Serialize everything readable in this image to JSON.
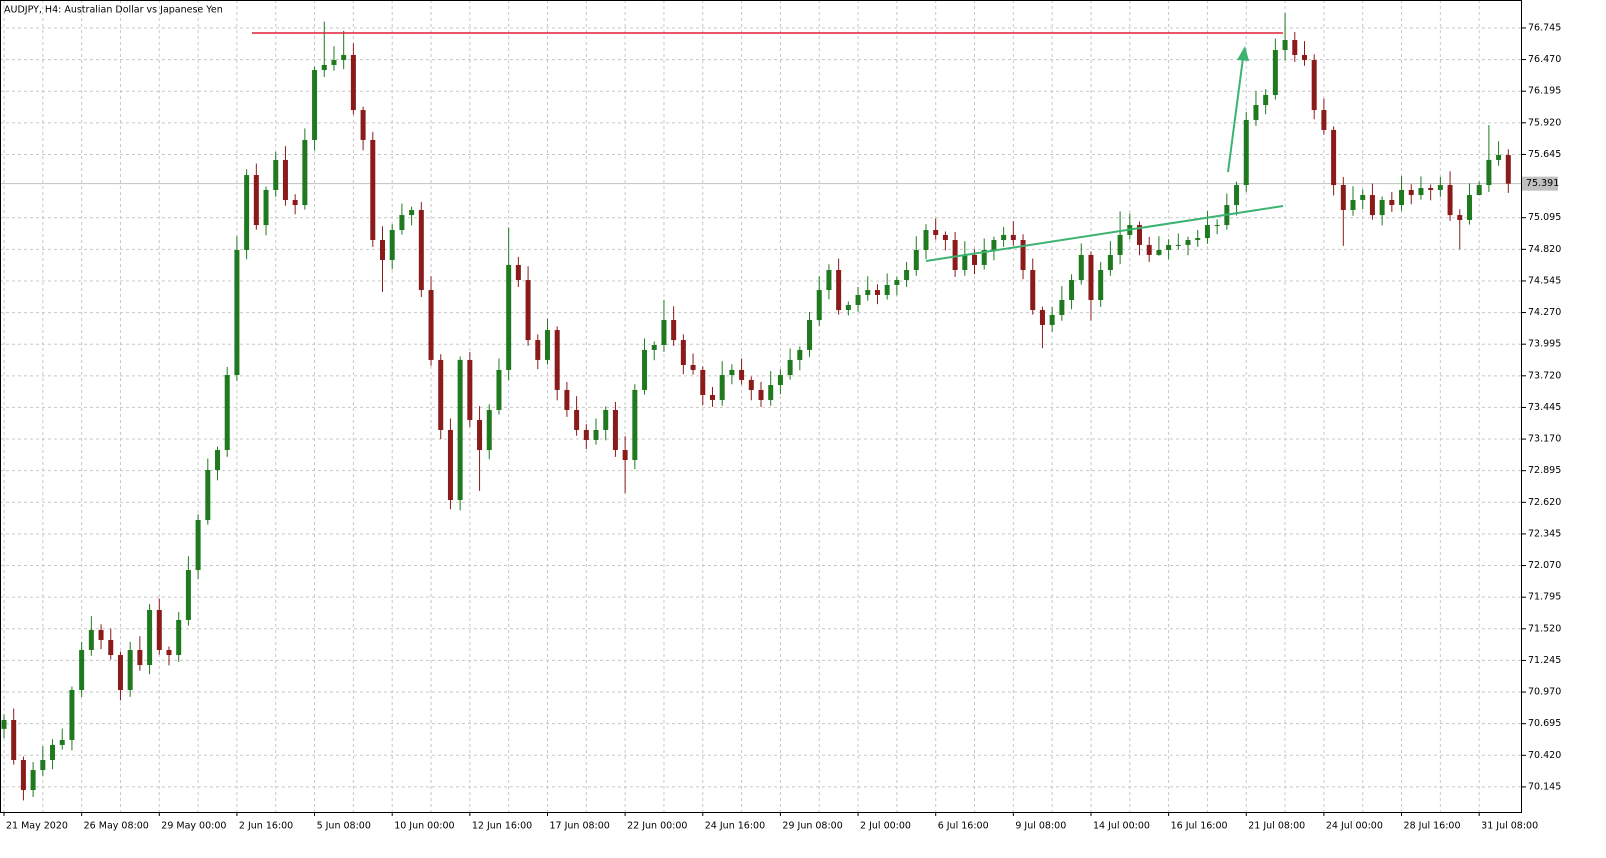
{
  "chart_data": {
    "type": "candlestick",
    "title": "AUDJPY, H4:  Australian Dollar vs Japanese Yen",
    "ylim": [
      69.927,
      76.988
    ],
    "yticks": [
      70.145,
      {
        "value": 70.42,
        "label": "70.420"
      },
      70.695,
      {
        "value": 70.97,
        "label": "70.970"
      },
      71.245,
      {
        "value": 71.52,
        "label": "71.520"
      },
      71.795,
      {
        "value": 72.07,
        "label": "72.070"
      },
      72.345,
      {
        "value": 72.62,
        "label": "72.620"
      },
      72.895,
      {
        "value": 73.17,
        "label": "73.170"
      },
      73.445,
      {
        "value": 73.72,
        "label": "73.720"
      },
      73.995,
      {
        "value": 74.27,
        "label": "74.270"
      },
      74.545,
      {
        "value": 74.82,
        "label": "74.820"
      },
      75.095,
      75.645,
      {
        "value": 75.92,
        "label": "75.920"
      },
      76.195,
      {
        "value": 76.47,
        "label": "76.470"
      },
      76.745
    ],
    "grid": true,
    "last_price": 75.391,
    "colors": {
      "up": "#1f7a1f",
      "down": "#8b1a1a",
      "grid": "#c8c8c8",
      "last_price": "#c0c0c0"
    },
    "categories": [
      "21 May 2020",
      null,
      null,
      null,
      null,
      null,
      null,
      null,
      "26 May 08:00",
      null,
      null,
      null,
      null,
      null,
      null,
      null,
      "29 May 00:00",
      null,
      null,
      null,
      null,
      null,
      null,
      null,
      "2 Jun 16:00",
      null,
      null,
      null,
      null,
      null,
      null,
      null,
      "5 Jun 08:00",
      null,
      null,
      null,
      null,
      null,
      null,
      null,
      "10 Jun 00:00",
      null,
      null,
      null,
      null,
      null,
      null,
      null,
      "12 Jun 16:00",
      null,
      null,
      null,
      null,
      null,
      null,
      null,
      "17 Jun 08:00",
      null,
      null,
      null,
      null,
      null,
      null,
      null,
      "22 Jun 00:00",
      null,
      null,
      null,
      null,
      null,
      null,
      null,
      "24 Jun 16:00",
      null,
      null,
      null,
      null,
      null,
      null,
      null,
      "29 Jun 08:00",
      null,
      null,
      null,
      null,
      null,
      null,
      null,
      "2 Jul 00:00",
      null,
      null,
      null,
      null,
      null,
      null,
      null,
      "6 Jul 16:00",
      null,
      null,
      null,
      null,
      null,
      null,
      null,
      "9 Jul 08:00",
      null,
      null,
      null,
      null,
      null,
      null,
      null,
      "14 Jul 00:00",
      null,
      null,
      null,
      null,
      null,
      null,
      null,
      "16 Jul 16:00",
      null,
      null,
      null,
      null,
      null,
      null,
      null,
      "21 Jul 08:00",
      null,
      null,
      null,
      null,
      null,
      null,
      null,
      "24 Jul 00:00",
      null,
      null,
      null,
      null,
      null,
      null,
      null,
      "28 Jul 16:00",
      null,
      null,
      null,
      null,
      null,
      null,
      null,
      "31 Jul 08:00",
      null,
      null,
      null
    ],
    "ohlc": [
      [
        70.65,
        70.777,
        70.57,
        70.727
      ],
      [
        70.727,
        70.827,
        70.339,
        70.379
      ],
      [
        70.379,
        70.409,
        70.028,
        70.118
      ],
      [
        70.118,
        70.362,
        70.058,
        70.292
      ],
      [
        70.292,
        70.499,
        70.242,
        70.379
      ],
      [
        70.379,
        70.56,
        70.299,
        70.51
      ],
      [
        70.51,
        70.653,
        70.47,
        70.553
      ],
      [
        70.553,
        71.018,
        70.463,
        70.988
      ],
      [
        70.988,
        71.406,
        70.928,
        71.336
      ],
      [
        71.336,
        71.63,
        71.286,
        71.51
      ],
      [
        71.51,
        71.56,
        71.343,
        71.423
      ],
      [
        71.423,
        71.523,
        71.252,
        71.292
      ],
      [
        71.292,
        71.322,
        70.898,
        70.988
      ],
      [
        70.988,
        71.406,
        70.928,
        71.336
      ],
      [
        71.336,
        71.456,
        71.155,
        71.205
      ],
      [
        71.205,
        71.734,
        71.125,
        71.684
      ],
      [
        71.684,
        71.784,
        71.296,
        71.336
      ],
      [
        71.336,
        71.366,
        71.202,
        71.292
      ],
      [
        71.292,
        71.667,
        71.232,
        71.597
      ],
      [
        71.597,
        72.151,
        71.547,
        72.031
      ],
      [
        72.031,
        72.516,
        71.951,
        72.466
      ],
      [
        72.466,
        73.001,
        72.426,
        72.901
      ],
      [
        72.901,
        73.105,
        72.811,
        73.075
      ],
      [
        73.075,
        73.797,
        73.015,
        73.727
      ],
      [
        73.727,
        74.934,
        73.677,
        74.814
      ],
      [
        74.814,
        75.516,
        74.734,
        75.466
      ],
      [
        75.466,
        75.566,
        74.991,
        75.031
      ],
      [
        75.031,
        75.366,
        74.941,
        75.336
      ],
      [
        75.336,
        75.667,
        75.276,
        75.597
      ],
      [
        75.597,
        75.717,
        75.199,
        75.249
      ],
      [
        75.249,
        75.299,
        75.125,
        75.205
      ],
      [
        75.205,
        75.871,
        75.165,
        75.771
      ],
      [
        75.771,
        76.409,
        75.681,
        76.379
      ],
      [
        76.379,
        76.8,
        76.319,
        76.423
      ],
      [
        76.423,
        76.586,
        76.373,
        76.466
      ],
      [
        76.466,
        76.72,
        76.386,
        76.51
      ],
      [
        76.51,
        76.61,
        75.991,
        76.031
      ],
      [
        76.031,
        76.061,
        75.681,
        75.771
      ],
      [
        75.771,
        75.841,
        74.841,
        74.901
      ],
      [
        74.901,
        75.021,
        74.45,
        74.727
      ],
      [
        74.727,
        75.038,
        74.647,
        74.988
      ],
      [
        74.988,
        75.218,
        74.948,
        75.118
      ],
      [
        75.118,
        75.192,
        75.028,
        75.162
      ],
      [
        75.162,
        75.232,
        74.406,
        74.466
      ],
      [
        74.466,
        74.586,
        73.808,
        73.858
      ],
      [
        73.858,
        73.908,
        73.169,
        73.249
      ],
      [
        73.249,
        73.349,
        72.56,
        72.64
      ],
      [
        72.64,
        73.888,
        72.55,
        73.858
      ],
      [
        73.858,
        73.928,
        73.276,
        73.336
      ],
      [
        73.336,
        73.456,
        72.72,
        73.075
      ],
      [
        73.075,
        73.473,
        72.995,
        73.423
      ],
      [
        73.423,
        73.871,
        73.383,
        73.771
      ],
      [
        73.771,
        75.01,
        73.681,
        74.684
      ],
      [
        74.684,
        74.754,
        74.493,
        74.553
      ],
      [
        74.553,
        74.673,
        73.981,
        74.031
      ],
      [
        74.031,
        74.081,
        73.778,
        73.858
      ],
      [
        73.858,
        74.218,
        73.818,
        74.118
      ],
      [
        74.118,
        74.148,
        73.507,
        73.597
      ],
      [
        73.597,
        73.667,
        73.363,
        73.423
      ],
      [
        73.423,
        73.543,
        73.199,
        73.249
      ],
      [
        73.249,
        73.299,
        73.082,
        73.162
      ],
      [
        73.162,
        73.349,
        73.122,
        73.249
      ],
      [
        73.249,
        73.453,
        73.159,
        73.423
      ],
      [
        73.423,
        73.493,
        73.015,
        73.075
      ],
      [
        73.075,
        73.195,
        72.7,
        72.988
      ],
      [
        72.988,
        73.647,
        72.908,
        73.597
      ],
      [
        73.597,
        74.045,
        73.557,
        73.945
      ],
      [
        73.945,
        74.018,
        73.855,
        73.988
      ],
      [
        73.988,
        74.38,
        73.928,
        74.205
      ],
      [
        74.205,
        74.325,
        73.981,
        74.031
      ],
      [
        74.031,
        74.081,
        73.734,
        73.814
      ],
      [
        73.814,
        73.914,
        73.731,
        73.771
      ],
      [
        73.771,
        73.801,
        73.463,
        73.553
      ],
      [
        73.553,
        73.623,
        73.45,
        73.51
      ],
      [
        73.51,
        73.847,
        73.46,
        73.727
      ],
      [
        73.727,
        73.821,
        73.647,
        73.771
      ],
      [
        73.771,
        73.871,
        73.644,
        73.684
      ],
      [
        73.684,
        73.714,
        73.507,
        73.597
      ],
      [
        73.597,
        73.667,
        73.45,
        73.51
      ],
      [
        73.51,
        73.76,
        73.46,
        73.64
      ],
      [
        73.64,
        73.777,
        73.56,
        73.727
      ],
      [
        73.727,
        73.958,
        73.687,
        73.858
      ],
      [
        73.858,
        73.975,
        73.768,
        73.945
      ],
      [
        73.945,
        74.275,
        73.885,
        74.205
      ],
      [
        74.205,
        74.586,
        74.155,
        74.466
      ],
      [
        74.466,
        74.69,
        74.386,
        74.64
      ],
      [
        74.64,
        74.74,
        74.252,
        74.292
      ],
      [
        74.292,
        74.366,
        74.246,
        74.336
      ],
      [
        74.336,
        74.493,
        74.276,
        74.423
      ],
      [
        74.423,
        74.586,
        74.373,
        74.466
      ],
      [
        74.466,
        74.516,
        74.343,
        74.423
      ],
      [
        74.423,
        74.61,
        74.383,
        74.51
      ],
      [
        74.51,
        74.583,
        74.42,
        74.553
      ],
      [
        74.553,
        74.71,
        74.493,
        74.64
      ],
      [
        74.64,
        74.934,
        74.59,
        74.814
      ],
      [
        74.814,
        75.038,
        74.734,
        74.988
      ],
      [
        74.988,
        75.088,
        74.905,
        74.945
      ],
      [
        74.945,
        74.975,
        74.811,
        74.901
      ],
      [
        74.901,
        74.971,
        74.58,
        74.64
      ],
      [
        74.64,
        74.891,
        74.59,
        74.771
      ],
      [
        74.771,
        74.821,
        74.604,
        74.684
      ],
      [
        74.684,
        74.914,
        74.644,
        74.814
      ],
      [
        74.814,
        74.931,
        74.724,
        74.901
      ],
      [
        74.901,
        75.015,
        74.841,
        74.945
      ],
      [
        74.945,
        75.065,
        74.851,
        74.901
      ],
      [
        74.901,
        74.951,
        74.56,
        74.64
      ],
      [
        74.64,
        74.74,
        74.252,
        74.292
      ],
      [
        74.292,
        74.322,
        73.96,
        74.162
      ],
      [
        74.162,
        74.319,
        74.102,
        74.249
      ],
      [
        74.249,
        74.499,
        74.199,
        74.379
      ],
      [
        74.379,
        74.603,
        74.299,
        74.553
      ],
      [
        74.553,
        74.871,
        74.513,
        74.771
      ],
      [
        74.771,
        74.801,
        74.2,
        74.379
      ],
      [
        74.379,
        74.71,
        74.319,
        74.64
      ],
      [
        74.64,
        74.891,
        74.59,
        74.771
      ],
      [
        74.771,
        75.15,
        74.691,
        74.945
      ],
      [
        74.945,
        75.131,
        74.905,
        75.031
      ],
      [
        75.031,
        75.061,
        74.768,
        74.858
      ],
      [
        74.858,
        74.928,
        74.711,
        74.771
      ],
      [
        74.771,
        74.934,
        74.764,
        74.814
      ],
      [
        74.814,
        74.908,
        74.734,
        74.858
      ],
      [
        74.858,
        74.958,
        74.818,
        74.858
      ],
      [
        74.858,
        74.931,
        74.768,
        74.901
      ],
      [
        74.901,
        74.988,
        74.841,
        74.918
      ],
      [
        74.918,
        75.151,
        74.868,
        75.031
      ],
      [
        75.031,
        75.081,
        74.951,
        75.031
      ],
      [
        75.031,
        75.305,
        74.991,
        75.205
      ],
      [
        75.205,
        75.409,
        75.115,
        75.379
      ],
      [
        75.379,
        76.015,
        75.319,
        75.945
      ],
      [
        75.945,
        76.195,
        75.895,
        76.075
      ],
      [
        76.075,
        76.212,
        75.995,
        76.162
      ],
      [
        76.162,
        76.653,
        76.122,
        76.553
      ],
      [
        76.553,
        76.875,
        76.463,
        76.64
      ],
      [
        76.64,
        76.71,
        76.45,
        76.51
      ],
      [
        76.51,
        76.63,
        76.416,
        76.466
      ],
      [
        76.466,
        76.516,
        75.951,
        76.031
      ],
      [
        76.031,
        76.131,
        75.818,
        75.858
      ],
      [
        75.858,
        75.888,
        75.289,
        75.379
      ],
      [
        75.379,
        75.449,
        74.85,
        75.162
      ],
      [
        75.162,
        75.369,
        75.112,
        75.249
      ],
      [
        75.249,
        75.342,
        75.169,
        75.292
      ],
      [
        75.292,
        75.392,
        75.078,
        75.118
      ],
      [
        75.118,
        75.279,
        75.028,
        75.249
      ],
      [
        75.249,
        75.319,
        75.145,
        75.205
      ],
      [
        75.205,
        75.456,
        75.155,
        75.336
      ],
      [
        75.336,
        75.386,
        75.212,
        75.292
      ],
      [
        75.292,
        75.453,
        75.252,
        75.353
      ],
      [
        75.353,
        75.383,
        75.246,
        75.336
      ],
      [
        75.336,
        75.449,
        75.276,
        75.379
      ],
      [
        75.379,
        75.499,
        75.068,
        75.118
      ],
      [
        75.118,
        75.168,
        74.82,
        75.075
      ],
      [
        75.075,
        75.392,
        75.035,
        75.292
      ],
      [
        75.292,
        75.409,
        75.289,
        75.379
      ],
      [
        75.379,
        75.9,
        75.319,
        75.597
      ],
      [
        75.597,
        75.76,
        75.547,
        75.64
      ],
      [
        75.64,
        75.69,
        75.311,
        75.391
      ]
    ]
  }
}
